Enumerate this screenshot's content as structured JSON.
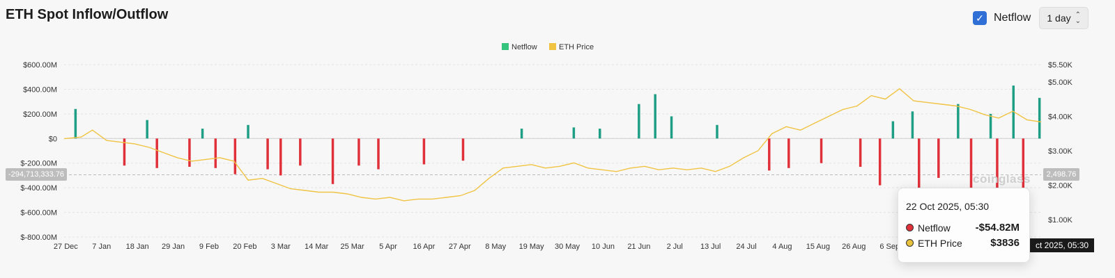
{
  "header": {
    "title": "ETH Spot Inflow/Outflow",
    "netflow_checked": true,
    "netflow_label": "Netflow",
    "interval": "1 day"
  },
  "chart_data": {
    "type": "bar+line",
    "legend": [
      {
        "name": "Netflow",
        "color": "#35c47e"
      },
      {
        "name": "ETH Price",
        "color": "#f0c342"
      }
    ],
    "legend_position": "top-center",
    "grid": true,
    "left_axis": {
      "ticks": [
        600,
        400,
        200,
        0,
        -200,
        -400,
        -600,
        -800
      ],
      "tick_labels": [
        "$600.00M",
        "$400.00M",
        "$200.00M",
        "$0",
        "$-200.00M",
        "$-400.00M",
        "$-600.00M",
        "$-800.00M"
      ],
      "range": [
        -800,
        600
      ],
      "unit": "M USD"
    },
    "right_axis": {
      "ticks": [
        5500,
        5000,
        4000,
        3000,
        2000,
        1000
      ],
      "tick_labels": [
        "$5.50K",
        "$5.00K",
        "$4.00K",
        "$3.00K",
        "$2.00K",
        "$1.00K"
      ],
      "range": [
        500,
        5500
      ]
    },
    "x_tick_labels": [
      "27 Dec",
      "7 Jan",
      "18 Jan",
      "29 Jan",
      "9 Feb",
      "20 Feb",
      "3 Mar",
      "14 Mar",
      "25 Mar",
      "5 Apr",
      "16 Apr",
      "27 Apr",
      "8 May",
      "19 May",
      "30 May",
      "10 Jun",
      "21 Jun",
      "2 Jul",
      "13 Jul",
      "24 Jul",
      "4 Aug",
      "15 Aug",
      "26 Aug",
      "6 Sep"
    ],
    "x_tick_spacing_days": 11,
    "bar_days": 300,
    "netflow_bars": [
      {
        "day": 3,
        "value": 240
      },
      {
        "day": 18,
        "value": -220
      },
      {
        "day": 25,
        "value": 150
      },
      {
        "day": 28,
        "value": -240
      },
      {
        "day": 38,
        "value": -230
      },
      {
        "day": 42,
        "value": 80
      },
      {
        "day": 46,
        "value": -240
      },
      {
        "day": 52,
        "value": -290
      },
      {
        "day": 56,
        "value": 110
      },
      {
        "day": 62,
        "value": -250
      },
      {
        "day": 66,
        "value": -300
      },
      {
        "day": 72,
        "value": -220
      },
      {
        "day": 82,
        "value": -370
      },
      {
        "day": 90,
        "value": -220
      },
      {
        "day": 96,
        "value": -250
      },
      {
        "day": 110,
        "value": -210
      },
      {
        "day": 122,
        "value": -180
      },
      {
        "day": 140,
        "value": 80
      },
      {
        "day": 156,
        "value": 90
      },
      {
        "day": 164,
        "value": 80
      },
      {
        "day": 176,
        "value": 280
      },
      {
        "day": 181,
        "value": 360
      },
      {
        "day": 186,
        "value": 180
      },
      {
        "day": 200,
        "value": 110
      },
      {
        "day": 216,
        "value": -260
      },
      {
        "day": 222,
        "value": -240
      },
      {
        "day": 232,
        "value": -200
      },
      {
        "day": 244,
        "value": -230
      },
      {
        "day": 250,
        "value": -380
      },
      {
        "day": 254,
        "value": 140
      },
      {
        "day": 260,
        "value": 220
      },
      {
        "day": 262,
        "value": -400
      },
      {
        "day": 268,
        "value": -320
      },
      {
        "day": 274,
        "value": 280
      },
      {
        "day": 278,
        "value": -450
      },
      {
        "day": 284,
        "value": 200
      },
      {
        "day": 286,
        "value": -490
      },
      {
        "day": 291,
        "value": 430
      },
      {
        "day": 294,
        "value": -590
      },
      {
        "day": 299,
        "value": 330
      }
    ],
    "eth_price_points": [
      [
        0,
        3350
      ],
      [
        6,
        3400
      ],
      [
        10,
        3600
      ],
      [
        15,
        3300
      ],
      [
        20,
        3250
      ],
      [
        25,
        3200
      ],
      [
        30,
        3100
      ],
      [
        35,
        2950
      ],
      [
        40,
        2800
      ],
      [
        45,
        2700
      ],
      [
        50,
        2750
      ],
      [
        55,
        2800
      ],
      [
        60,
        2700
      ],
      [
        65,
        2150
      ],
      [
        70,
        2200
      ],
      [
        75,
        2050
      ],
      [
        80,
        1900
      ],
      [
        85,
        1850
      ],
      [
        90,
        1800
      ],
      [
        95,
        1800
      ],
      [
        100,
        1750
      ],
      [
        105,
        1650
      ],
      [
        110,
        1600
      ],
      [
        115,
        1650
      ],
      [
        120,
        1550
      ],
      [
        125,
        1600
      ],
      [
        130,
        1600
      ],
      [
        135,
        1650
      ],
      [
        140,
        1700
      ],
      [
        145,
        1850
      ],
      [
        150,
        2200
      ],
      [
        155,
        2500
      ],
      [
        160,
        2550
      ],
      [
        165,
        2600
      ],
      [
        170,
        2500
      ],
      [
        175,
        2550
      ],
      [
        180,
        2650
      ],
      [
        185,
        2500
      ],
      [
        190,
        2450
      ],
      [
        195,
        2400
      ],
      [
        200,
        2500
      ],
      [
        205,
        2550
      ],
      [
        210,
        2450
      ],
      [
        215,
        2500
      ],
      [
        220,
        2450
      ],
      [
        225,
        2500
      ],
      [
        230,
        2400
      ],
      [
        235,
        2550
      ],
      [
        240,
        2800
      ],
      [
        245,
        3000
      ],
      [
        250,
        3500
      ],
      [
        255,
        3700
      ],
      [
        260,
        3600
      ],
      [
        265,
        3800
      ],
      [
        270,
        4000
      ],
      [
        275,
        4200
      ],
      [
        280,
        4300
      ],
      [
        285,
        4600
      ],
      [
        290,
        4500
      ],
      [
        295,
        4800
      ],
      [
        300,
        4450
      ],
      [
        305,
        4400
      ],
      [
        310,
        4350
      ],
      [
        315,
        4300
      ],
      [
        320,
        4200
      ],
      [
        325,
        4050
      ],
      [
        330,
        3950
      ],
      [
        335,
        4150
      ],
      [
        340,
        3900
      ],
      [
        345,
        3836
      ]
    ],
    "series": [
      {
        "name": "Netflow"
      },
      {
        "name": "ETH Price"
      }
    ],
    "crosshair": {
      "left_value_label": "-294,713,333.76",
      "right_value_label": "2,498.76",
      "x_label": "ct 2025, 05:30"
    }
  },
  "tooltip": {
    "date": "22 Oct 2025, 05:30",
    "rows": [
      {
        "label": "Netflow",
        "value": "-$54.82M",
        "dot": "#e0303a"
      },
      {
        "label": "ETH Price",
        "value": "$3836",
        "dot": "#e8c23a"
      }
    ]
  },
  "watermark": "coinglass"
}
